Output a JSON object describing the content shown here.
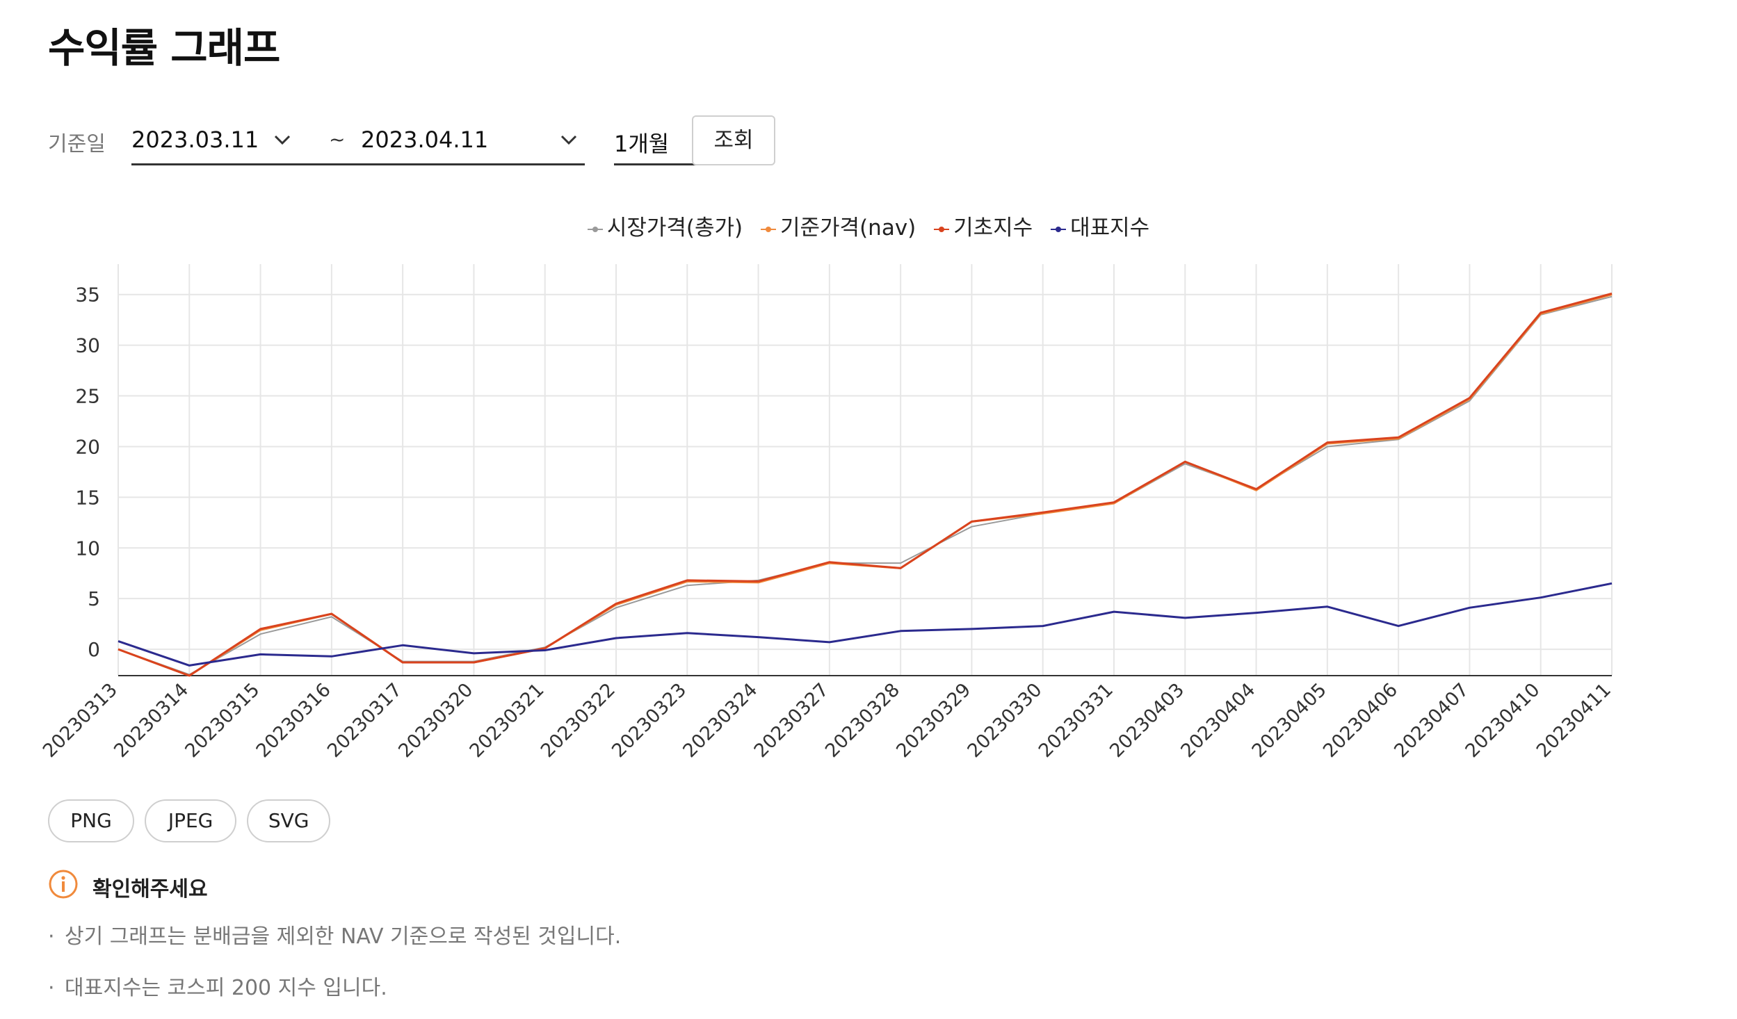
{
  "page": {
    "title": "수익률 그래프"
  },
  "filter": {
    "label": "기준일",
    "start_date": "2023.03.11",
    "separator": "~",
    "end_date": "2023.04.11",
    "period": "1개월",
    "search_label": "조회"
  },
  "legend": [
    {
      "name": "시장가격(총가)",
      "color": "#9a9a9a"
    },
    {
      "name": "기준가격(nav)",
      "color": "#f08a3c"
    },
    {
      "name": "기초지수",
      "color": "#d9431e"
    },
    {
      "name": "대표지수",
      "color": "#2b2a8e"
    }
  ],
  "chart_data": {
    "type": "line",
    "x": [
      "20230313",
      "20230314",
      "20230315",
      "20230316",
      "20230317",
      "20230320",
      "20230321",
      "20230322",
      "20230323",
      "20230324",
      "20230327",
      "20230328",
      "20230329",
      "20230330",
      "20230331",
      "20230403",
      "20230404",
      "20230405",
      "20230406",
      "20230407",
      "20230410",
      "20230411"
    ],
    "ylim": [
      -2.6,
      38
    ],
    "yticks": [
      0,
      5,
      10,
      15,
      20,
      25,
      30,
      35
    ],
    "grid": true,
    "legend_position": "top-center",
    "series": [
      {
        "name": "시장가격(총가)",
        "color": "#9a9a9a",
        "values": [
          0,
          -2.5,
          1.5,
          3.2,
          -1.2,
          -1.2,
          0.2,
          4.1,
          6.3,
          6.8,
          8.5,
          8.5,
          12.1,
          13.4,
          14.4,
          18.3,
          15.8,
          20.0,
          20.7,
          24.5,
          33.0,
          34.8
        ]
      },
      {
        "name": "기준가격(nav)",
        "color": "#f08a3c",
        "values": [
          0,
          -2.6,
          1.9,
          3.5,
          -1.3,
          -1.3,
          0.1,
          4.4,
          6.7,
          6.6,
          8.5,
          8.0,
          12.6,
          13.4,
          14.4,
          18.5,
          15.7,
          20.3,
          20.8,
          24.7,
          33.1,
          35.0
        ]
      },
      {
        "name": "기초지수",
        "color": "#d9431e",
        "values": [
          0,
          -2.6,
          2.0,
          3.5,
          -1.3,
          -1.3,
          0.1,
          4.5,
          6.8,
          6.7,
          8.6,
          8.0,
          12.6,
          13.5,
          14.5,
          18.5,
          15.8,
          20.4,
          20.9,
          24.8,
          33.2,
          35.1
        ]
      },
      {
        "name": "대표지수",
        "color": "#2b2a8e",
        "values": [
          0.8,
          -1.6,
          -0.5,
          -0.7,
          0.4,
          -0.4,
          -0.1,
          1.1,
          1.6,
          1.2,
          0.7,
          1.8,
          2.0,
          2.3,
          3.7,
          3.1,
          3.6,
          4.2,
          2.3,
          4.1,
          5.1,
          6.5
        ]
      }
    ]
  },
  "export": {
    "buttons": [
      "PNG",
      "JPEG",
      "SVG"
    ]
  },
  "notice": {
    "title": "확인해주세요",
    "items": [
      "상기 그래프는 분배금을 제외한 NAV 기준으로 작성된 것입니다.",
      "대표지수는 코스피 200 지수 입니다."
    ]
  }
}
